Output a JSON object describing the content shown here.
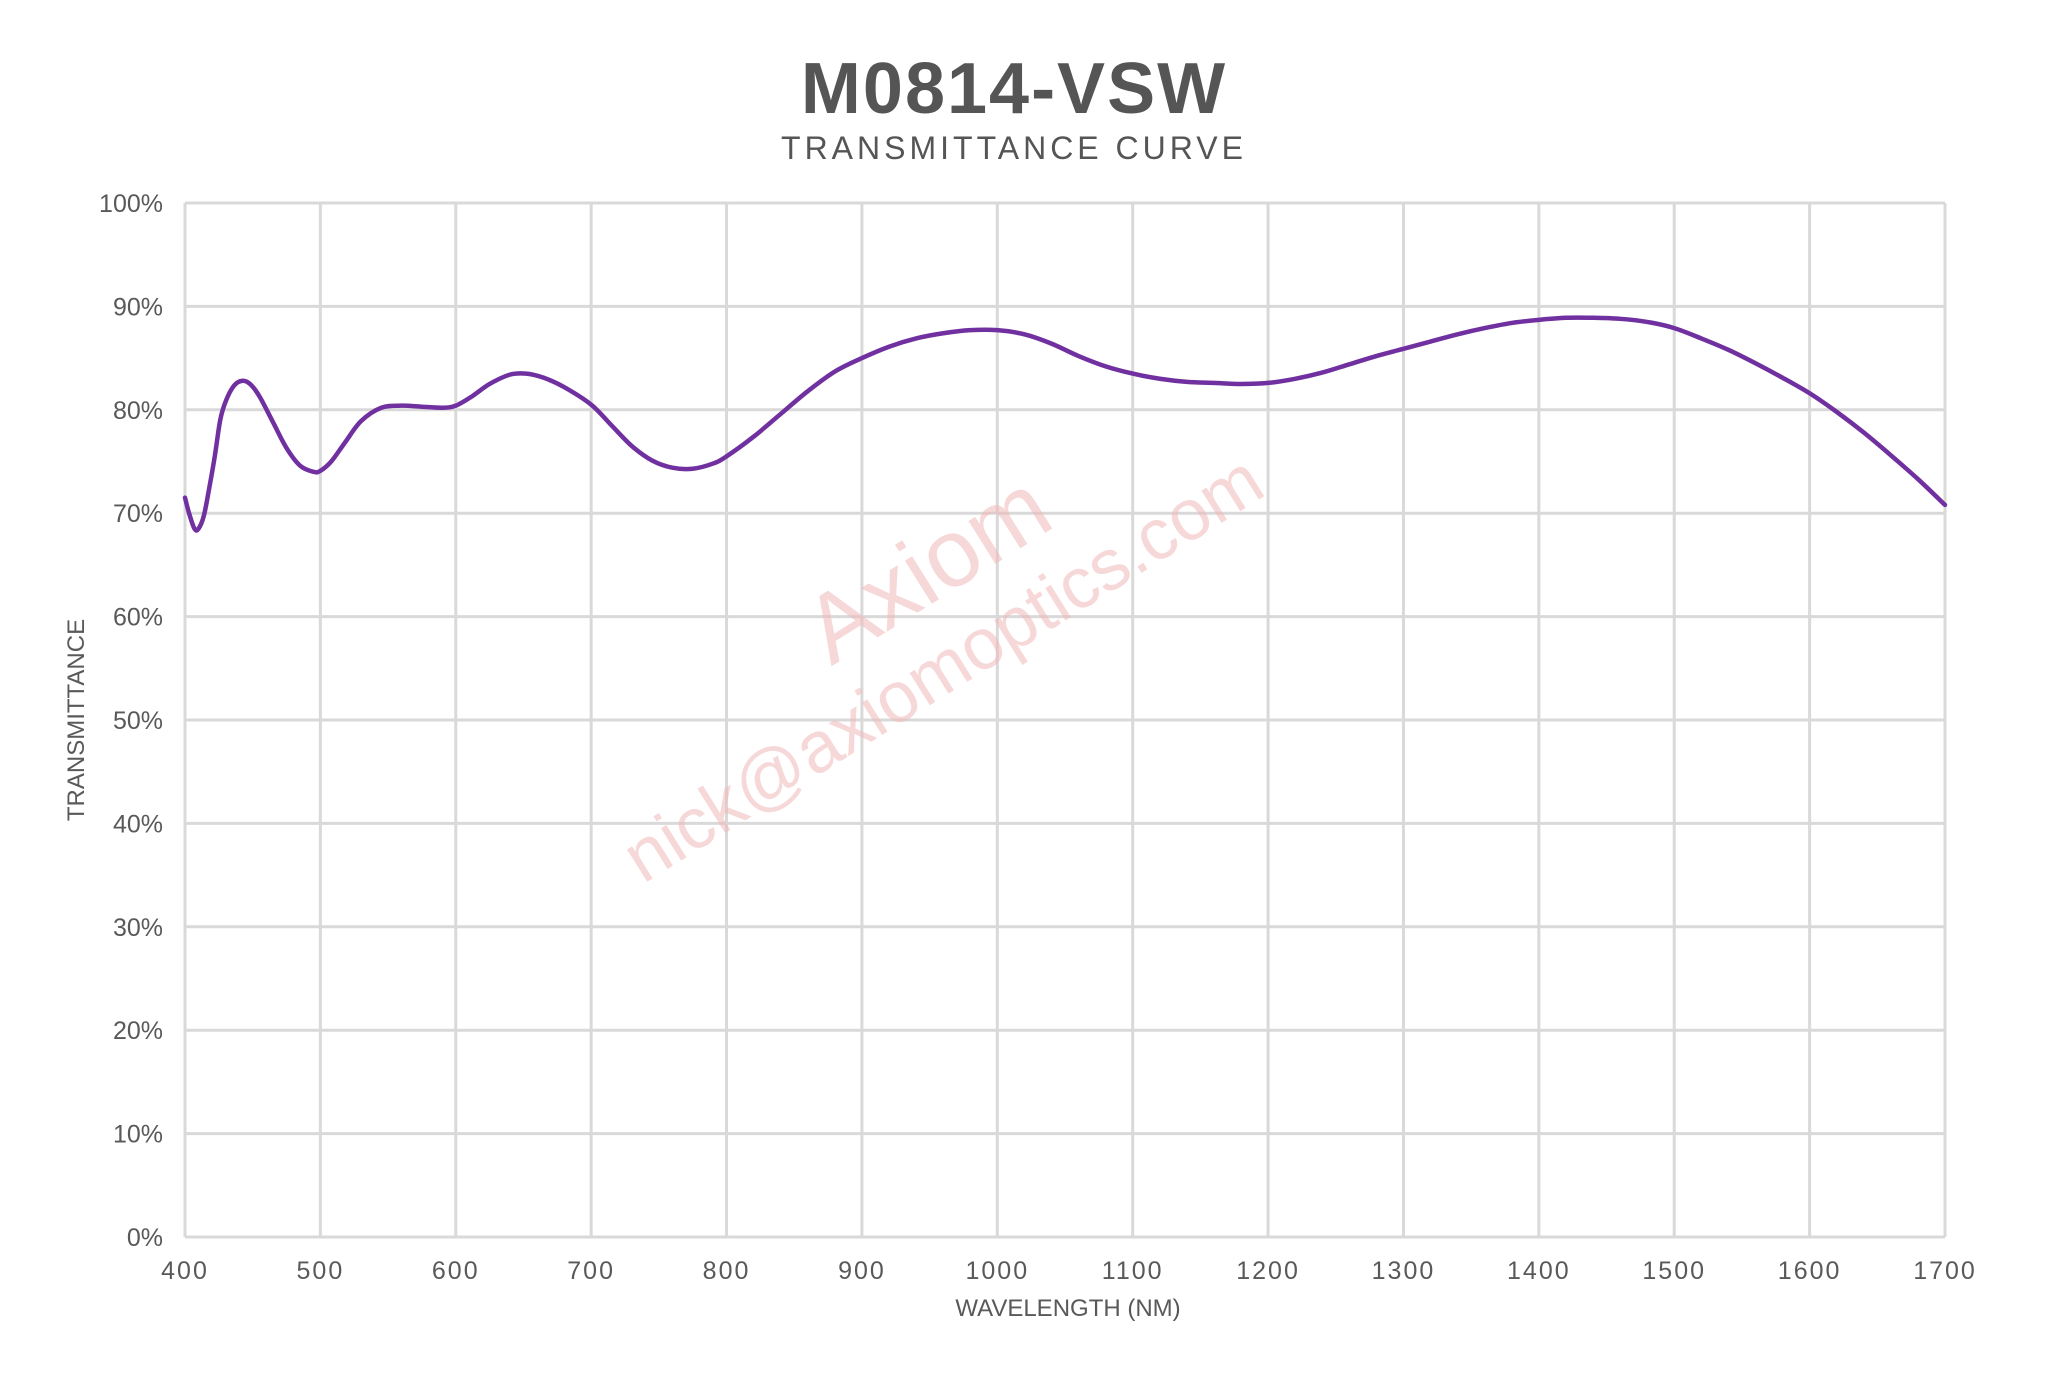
{
  "chart_data": {
    "type": "line",
    "title": "M0814-VSW",
    "subtitle": "TRANSMITTANCE CURVE",
    "xlabel": "WAVELENGTH (NM)",
    "ylabel": "TRANSMITTANCE",
    "xlim": [
      400,
      1700
    ],
    "ylim": [
      0,
      100
    ],
    "x_ticks": [
      "400",
      "500",
      "600",
      "700",
      "800",
      "900",
      "1000",
      "1100",
      "1200",
      "1300",
      "1400",
      "1500",
      "1600",
      "1700"
    ],
    "y_ticks": [
      "0%",
      "10%",
      "20%",
      "30%",
      "40%",
      "50%",
      "60%",
      "70%",
      "80%",
      "90%",
      "100%"
    ],
    "grid": true,
    "legend": "none",
    "series": [
      {
        "color": "#7030a0",
        "x": [
          400,
          403,
          407,
          410,
          414,
          418,
          422,
          426,
          430,
          436,
          442,
          448,
          455,
          465,
          475,
          485,
          495,
          500,
          508,
          518,
          530,
          545,
          560,
          575,
          590,
          600,
          612,
          625,
          640,
          652,
          665,
          680,
          700,
          715,
          730,
          745,
          760,
          775,
          790,
          800,
          820,
          840,
          860,
          880,
          900,
          920,
          940,
          960,
          980,
          1000,
          1020,
          1040,
          1060,
          1080,
          1100,
          1120,
          1140,
          1160,
          1180,
          1200,
          1220,
          1240,
          1260,
          1280,
          1300,
          1320,
          1340,
          1360,
          1380,
          1400,
          1420,
          1440,
          1460,
          1480,
          1500,
          1520,
          1540,
          1560,
          1580,
          1600,
          1620,
          1640,
          1660,
          1680,
          1700
        ],
        "y": [
          71.5,
          70.0,
          68.5,
          68.5,
          69.8,
          72.5,
          75.5,
          79.0,
          80.8,
          82.3,
          82.8,
          82.5,
          81.3,
          78.8,
          76.3,
          74.6,
          74.0,
          74.1,
          75.0,
          76.8,
          78.9,
          80.2,
          80.4,
          80.3,
          80.2,
          80.4,
          81.3,
          82.5,
          83.4,
          83.5,
          83.1,
          82.2,
          80.5,
          78.5,
          76.5,
          75.1,
          74.4,
          74.3,
          74.8,
          75.5,
          77.4,
          79.6,
          81.8,
          83.7,
          85.0,
          86.1,
          86.9,
          87.4,
          87.7,
          87.7,
          87.3,
          86.4,
          85.2,
          84.2,
          83.5,
          83.0,
          82.7,
          82.6,
          82.5,
          82.6,
          83.0,
          83.6,
          84.4,
          85.2,
          85.9,
          86.6,
          87.3,
          87.9,
          88.4,
          88.7,
          88.9,
          88.9,
          88.8,
          88.5,
          87.9,
          86.9,
          85.8,
          84.5,
          83.1,
          81.6,
          79.8,
          77.8,
          75.6,
          73.3,
          70.8
        ]
      }
    ]
  },
  "watermark": {
    "brand": "Axiom",
    "email": "nick@axiomoptics.com"
  }
}
